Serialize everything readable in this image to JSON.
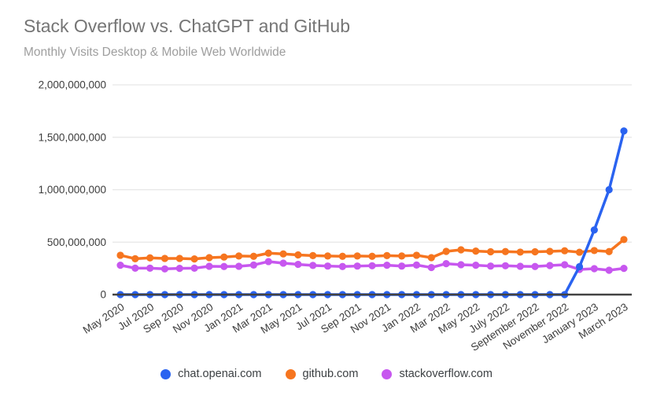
{
  "header": {
    "title": "Stack Overflow vs. ChatGPT and GitHub",
    "subtitle": "Monthly Visits Desktop & Mobile Web Worldwide"
  },
  "colors": {
    "chat_openai": "#2a63f0",
    "github": "#f6751f",
    "stackoverflow": "#c757ef",
    "gridline": "#e6e6e6",
    "axis_line": "#424242",
    "tick_label": "#3c3c3c",
    "title": "#757575",
    "subtitle": "#9e9e9e",
    "background": "#ffffff"
  },
  "legend": {
    "position": "bottom",
    "items": [
      {
        "label": "chat.openai.com",
        "color": "#2a63f0"
      },
      {
        "label": "github.com",
        "color": "#f6751f"
      },
      {
        "label": "stackoverflow.com",
        "color": "#c757ef"
      }
    ]
  },
  "chart_data": {
    "type": "line",
    "title": "Stack Overflow vs. ChatGPT and GitHub",
    "subtitle": "Monthly Visits Desktop & Mobile Web Worldwide",
    "ylabel": "",
    "xlabel": "",
    "ylim": [
      0,
      2000000000
    ],
    "grid": true,
    "legend_position": "bottom",
    "x": [
      "May 2020",
      "Jun 2020",
      "Jul 2020",
      "Aug 2020",
      "Sep 2020",
      "Oct 2020",
      "Nov 2020",
      "Dec 2020",
      "Jan 2021",
      "Feb 2021",
      "Mar 2021",
      "Apr 2021",
      "May 2021",
      "Jun 2021",
      "Jul 2021",
      "Aug 2021",
      "Sep 2021",
      "Oct 2021",
      "Nov 2021",
      "Dec 2021",
      "Jan 2022",
      "Feb 2022",
      "Mar 2022",
      "Apr 2022",
      "May 2022",
      "Jun 2022",
      "Jul 2022",
      "Aug 2022",
      "Sep 2022",
      "Oct 2022",
      "Nov 2022",
      "Dec 2022",
      "Jan 2023",
      "Feb 2023",
      "Mar 2023"
    ],
    "x_tick_labels": [
      "May 2020",
      "Jul 2020",
      "Sep 2020",
      "Nov 2020",
      "Jan 2021",
      "Mar 2021",
      "May 2021",
      "Jul 2021",
      "Sep 2021",
      "Nov 2021",
      "Jan 2022",
      "Mar 2022",
      "May 2022",
      "July 2022",
      "September 2022",
      "November 2022",
      "January 2023",
      "March 2023"
    ],
    "x_tick_every": 2,
    "y_ticks": [
      {
        "value": 0,
        "label": "0"
      },
      {
        "value": 500000000,
        "label": "500,000,000"
      },
      {
        "value": 1000000000,
        "label": "1,000,000,000"
      },
      {
        "value": 1500000000,
        "label": "1,500,000,000"
      },
      {
        "value": 2000000000,
        "label": "2,000,000,000"
      }
    ],
    "series": [
      {
        "name": "stackoverflow.com",
        "id": "stackoverflow-com",
        "color": "#c757ef",
        "values": [
          280000000,
          252000000,
          252000000,
          245000000,
          250000000,
          252000000,
          270000000,
          268000000,
          270000000,
          282000000,
          315000000,
          300000000,
          288000000,
          278000000,
          272000000,
          268000000,
          272000000,
          275000000,
          280000000,
          272000000,
          282000000,
          258000000,
          295000000,
          285000000,
          280000000,
          272000000,
          275000000,
          270000000,
          268000000,
          277000000,
          285000000,
          240000000,
          247000000,
          232000000,
          250000000
        ]
      },
      {
        "name": "github.com",
        "id": "github-com",
        "color": "#f6751f",
        "values": [
          375000000,
          342000000,
          350000000,
          345000000,
          345000000,
          340000000,
          352000000,
          358000000,
          368000000,
          365000000,
          395000000,
          388000000,
          378000000,
          372000000,
          368000000,
          365000000,
          368000000,
          365000000,
          372000000,
          368000000,
          375000000,
          352000000,
          412000000,
          427000000,
          415000000,
          408000000,
          410000000,
          405000000,
          408000000,
          412000000,
          418000000,
          404000000,
          420000000,
          410000000,
          525000000
        ]
      },
      {
        "name": "chat.openai.com",
        "id": "chat-openai-com",
        "color": "#2a63f0",
        "values": [
          0,
          0,
          0,
          0,
          0,
          0,
          0,
          0,
          0,
          0,
          0,
          0,
          0,
          0,
          0,
          0,
          0,
          0,
          0,
          0,
          0,
          0,
          0,
          0,
          0,
          0,
          0,
          0,
          0,
          0,
          0,
          266000000,
          616000000,
          1000000000,
          1560000000
        ]
      }
    ]
  }
}
